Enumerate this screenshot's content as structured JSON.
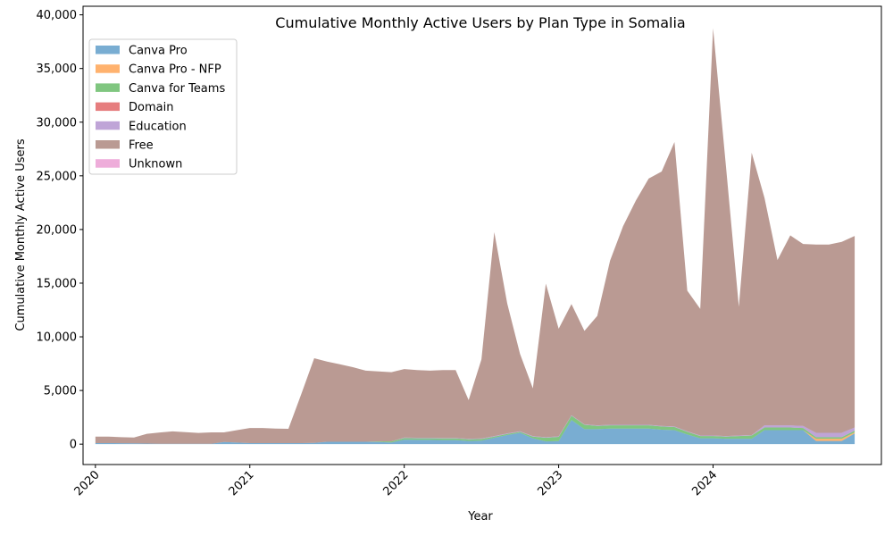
{
  "chart_data": {
    "type": "area",
    "title": "Cumulative Monthly Active Users by Plan Type in Somalia",
    "xlabel": "Year",
    "ylabel": "Cumulative Monthly Active Users",
    "xlim": [
      2019.92,
      2025.09
    ],
    "ylim": [
      -1900,
      40800
    ],
    "x_ticks": [
      2020,
      2021,
      2022,
      2023,
      2024
    ],
    "x_tick_labels": [
      "2020",
      "2021",
      "2022",
      "2023",
      "2024"
    ],
    "y_ticks": [
      0,
      5000,
      10000,
      15000,
      20000,
      25000,
      30000,
      35000,
      40000
    ],
    "y_tick_labels": [
      "0",
      "5,000",
      "10,000",
      "15,000",
      "20,000",
      "25,000",
      "30,000",
      "35,000",
      "40,000"
    ],
    "grid": false,
    "legend_position": "top-left",
    "stacked": true,
    "x": [
      2020.0,
      2020.083,
      2020.167,
      2020.25,
      2020.333,
      2020.417,
      2020.5,
      2020.583,
      2020.667,
      2020.75,
      2020.833,
      2020.917,
      2021.0,
      2021.083,
      2021.167,
      2021.25,
      2021.333,
      2021.417,
      2021.5,
      2021.583,
      2021.667,
      2021.75,
      2021.833,
      2021.917,
      2022.0,
      2022.083,
      2022.167,
      2022.25,
      2022.333,
      2022.417,
      2022.5,
      2022.583,
      2022.667,
      2022.75,
      2022.833,
      2022.917,
      2023.0,
      2023.083,
      2023.167,
      2023.25,
      2023.333,
      2023.417,
      2023.5,
      2023.583,
      2023.667,
      2023.75,
      2023.833,
      2023.917,
      2024.0,
      2024.083,
      2024.167,
      2024.25,
      2024.333,
      2024.417,
      2024.5,
      2024.583,
      2024.667,
      2024.75,
      2024.833,
      2024.917
    ],
    "series": [
      {
        "name": "Canva Pro",
        "color": "#1f77b4",
        "values": [
          100,
          100,
          90,
          80,
          60,
          40,
          40,
          40,
          40,
          40,
          200,
          150,
          100,
          100,
          100,
          100,
          100,
          120,
          220,
          220,
          220,
          220,
          200,
          150,
          420,
          400,
          400,
          380,
          380,
          300,
          330,
          600,
          850,
          1050,
          550,
          250,
          280,
          2250,
          1400,
          1400,
          1450,
          1450,
          1450,
          1450,
          1350,
          1300,
          900,
          550,
          550,
          500,
          500,
          500,
          1300,
          1300,
          1300,
          1300,
          300,
          300,
          300,
          1000
        ]
      },
      {
        "name": "Canva Pro - NFP",
        "color": "#ff7f0e",
        "values": [
          0,
          0,
          0,
          0,
          0,
          0,
          0,
          0,
          0,
          0,
          0,
          0,
          0,
          0,
          0,
          0,
          0,
          0,
          0,
          0,
          0,
          0,
          0,
          0,
          0,
          0,
          0,
          0,
          0,
          0,
          0,
          0,
          0,
          0,
          0,
          0,
          0,
          0,
          0,
          0,
          0,
          0,
          0,
          0,
          0,
          0,
          0,
          0,
          0,
          0,
          0,
          0,
          0,
          0,
          0,
          0,
          200,
          200,
          200,
          100
        ]
      },
      {
        "name": "Canva for Teams",
        "color": "#2ca02c",
        "values": [
          0,
          0,
          0,
          0,
          0,
          0,
          0,
          0,
          0,
          0,
          0,
          0,
          0,
          0,
          0,
          0,
          0,
          0,
          0,
          0,
          0,
          0,
          50,
          100,
          150,
          150,
          150,
          150,
          150,
          150,
          150,
          100,
          100,
          100,
          150,
          350,
          400,
          400,
          400,
          300,
          300,
          300,
          300,
          300,
          300,
          300,
          250,
          200,
          200,
          200,
          250,
          300,
          250,
          250,
          250,
          200,
          150,
          150,
          150,
          150
        ]
      },
      {
        "name": "Domain",
        "color": "#d62728",
        "values": [
          0,
          0,
          0,
          0,
          0,
          0,
          0,
          0,
          0,
          0,
          0,
          0,
          0,
          0,
          0,
          0,
          0,
          0,
          0,
          0,
          0,
          0,
          0,
          0,
          0,
          0,
          0,
          0,
          0,
          0,
          0,
          0,
          0,
          0,
          0,
          0,
          0,
          0,
          0,
          0,
          0,
          0,
          0,
          0,
          0,
          0,
          0,
          0,
          0,
          0,
          0,
          0,
          0,
          0,
          0,
          0,
          0,
          0,
          0,
          0
        ]
      },
      {
        "name": "Education",
        "color": "#9467bd",
        "values": [
          0,
          0,
          0,
          0,
          0,
          0,
          0,
          0,
          0,
          0,
          0,
          0,
          0,
          0,
          0,
          0,
          0,
          0,
          0,
          0,
          0,
          0,
          0,
          0,
          50,
          50,
          50,
          50,
          50,
          50,
          50,
          50,
          50,
          50,
          50,
          50,
          50,
          50,
          50,
          50,
          50,
          50,
          50,
          50,
          50,
          50,
          50,
          50,
          50,
          50,
          50,
          50,
          200,
          200,
          200,
          200,
          400,
          400,
          400,
          300
        ]
      },
      {
        "name": "Free",
        "color": "#8c564b",
        "values": [
          600,
          600,
          560,
          540,
          900,
          1050,
          1150,
          1080,
          1000,
          1060,
          900,
          1150,
          1400,
          1400,
          1350,
          1330,
          4560,
          7880,
          7470,
          7220,
          6950,
          6630,
          6530,
          6450,
          6380,
          6300,
          6250,
          6320,
          6320,
          3600,
          7370,
          19000,
          12100,
          7200,
          4450,
          14300,
          10020,
          10350,
          8700,
          10200,
          15300,
          18500,
          20900,
          22950,
          23700,
          26500,
          13100,
          11800,
          37950,
          25200,
          12000,
          26300,
          21200,
          15400,
          17700,
          16950,
          17550,
          17550,
          17800,
          17850
        ]
      },
      {
        "name": "Unknown",
        "color": "#e377c2",
        "values": [
          0,
          0,
          0,
          0,
          0,
          0,
          0,
          0,
          0,
          0,
          0,
          0,
          0,
          0,
          0,
          0,
          0,
          0,
          0,
          0,
          0,
          0,
          0,
          0,
          0,
          0,
          0,
          0,
          0,
          0,
          0,
          0,
          0,
          0,
          0,
          0,
          0,
          0,
          0,
          0,
          0,
          0,
          0,
          0,
          0,
          0,
          0,
          0,
          0,
          0,
          0,
          0,
          0,
          0,
          0,
          0,
          0,
          0,
          0,
          0
        ]
      }
    ]
  }
}
